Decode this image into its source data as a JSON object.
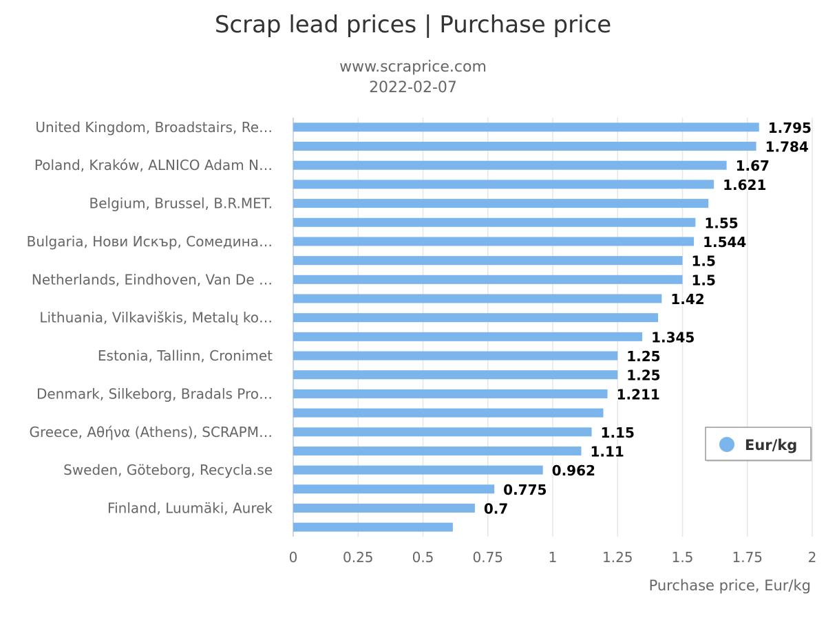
{
  "chart_data": {
    "type": "bar",
    "orientation": "horizontal",
    "title": "Scrap lead prices | Purchase price",
    "subtitle_line1": "www.scraprice.com",
    "subtitle_line2": "2022-02-07",
    "xlabel": "Purchase price, Eur/kg",
    "ylabel": "",
    "xlim": [
      0,
      2
    ],
    "x_ticks": [
      "0",
      "0.25",
      "0.5",
      "0.75",
      "1",
      "1.25",
      "1.5",
      "1.75",
      "2"
    ],
    "grid": true,
    "legend": {
      "position": "right",
      "label": "Eur/kg"
    },
    "color": "#7cb5ec",
    "categories": [
      "United Kingdom, Broadstairs, Re…",
      "",
      "Poland, Kraków, ALNICO Adam N…",
      "",
      "Belgium, Brussel, B.R.MET.",
      "",
      "Bulgaria, Нови Искър, Сомедина…",
      "",
      "Netherlands, Eindhoven, Van De …",
      "",
      "Lithuania, Vilkaviškis, Metalų ko…",
      "",
      "Estonia, Tallinn, Cronimet",
      "",
      "Denmark, Silkeborg, Bradals Pro…",
      "",
      "Greece, Αθήνα (Athens), SCRAPM…",
      "",
      "Sweden, Göteborg, Recycla.se",
      "",
      "Finland, Luumäki, Aurek",
      ""
    ],
    "values": [
      1.795,
      1.784,
      1.67,
      1.621,
      1.6,
      1.55,
      1.544,
      1.5,
      1.5,
      1.42,
      1.406,
      1.345,
      1.25,
      1.25,
      1.211,
      1.195,
      1.15,
      1.11,
      0.962,
      0.775,
      0.7,
      0.615
    ],
    "data_labels": [
      "1.795",
      "1.784",
      "1.67",
      "1.621",
      "",
      "1.55",
      "1.544",
      "1.5",
      "1.5",
      "1.42",
      "",
      "1.345",
      "1.25",
      "1.25",
      "1.211",
      "",
      "1.15",
      "1.11",
      "0.962",
      "0.775",
      "0.7",
      ""
    ]
  }
}
